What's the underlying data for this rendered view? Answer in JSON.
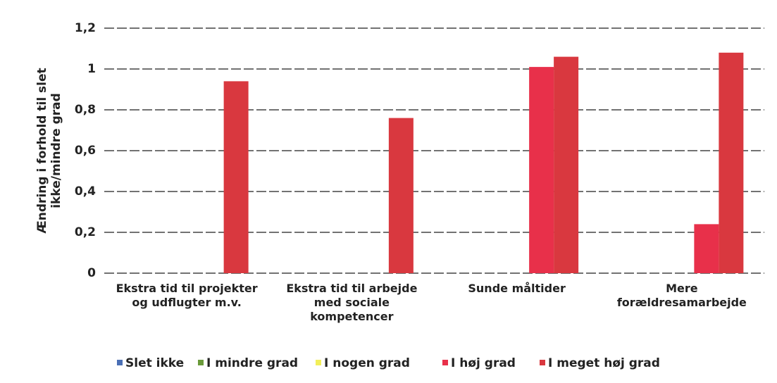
{
  "chart_data": {
    "type": "bar",
    "y_label": [
      "Ændring i forhold til slet",
      "ikke/mindre grad"
    ],
    "categories": [
      "Ekstra tid til projekter og udflugter m.v.",
      "Ekstra tid til arbejde med sociale kompetencer",
      "Sunde måltider",
      "Mere forældresamarbejde"
    ],
    "series": [
      {
        "name": "Slet ikke",
        "color": "#4a6fb5",
        "values": [
          0,
          0,
          0,
          0
        ]
      },
      {
        "name": "I mindre grad",
        "color": "#6a9a3a",
        "values": [
          0,
          0,
          0,
          0
        ]
      },
      {
        "name": "I nogen grad",
        "color": "#f2ef5a",
        "values": [
          0,
          0,
          0,
          0
        ]
      },
      {
        "name": "I høj grad",
        "color": "#e8304a",
        "values": [
          0,
          0,
          1.01,
          0.24
        ]
      },
      {
        "name": "I meget høj grad",
        "color": "#d9383f",
        "values": [
          0.94,
          0.76,
          1.06,
          1.08
        ]
      }
    ],
    "ylim": [
      0,
      1.2
    ],
    "yticks": [
      0,
      {
        "value": 0.2,
        "label": "0,2"
      },
      {
        "value": 0.4,
        "label": "0,4"
      },
      {
        "value": 0.6,
        "label": "0,6"
      },
      {
        "value": 0.8,
        "label": "0,8"
      },
      1,
      {
        "value": 1.2,
        "label": "1,2"
      }
    ],
    "grid": true,
    "legend": "bottom"
  }
}
